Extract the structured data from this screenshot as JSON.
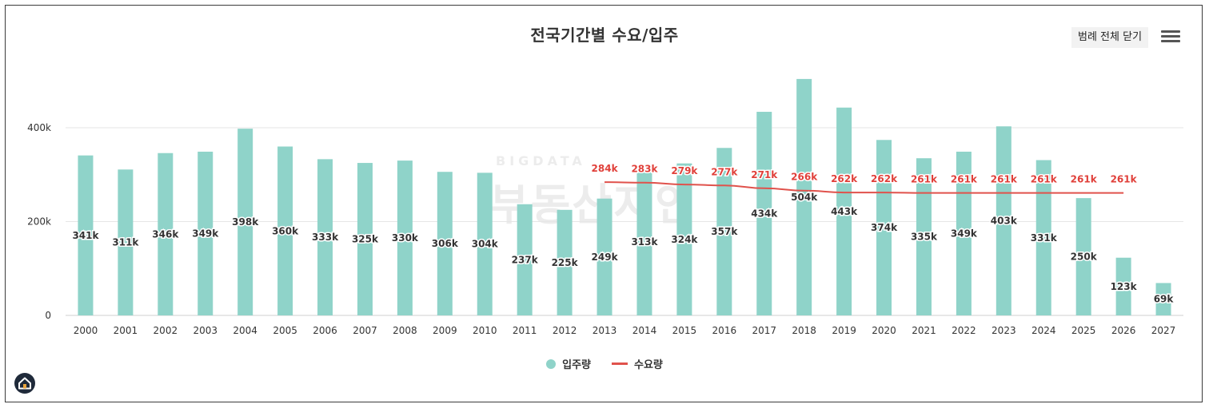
{
  "header": {
    "title": "전국기간별 수요/입주",
    "legend_toggle_label": "범례 전체 닫기"
  },
  "watermark": {
    "top_text": "BIGDATA",
    "main_text": "부동산지인"
  },
  "colors": {
    "bar": "#8fd3c9",
    "line": "#e0524c",
    "line_label": "#e0403a",
    "bar_label": "#333333",
    "grid": "#e6e6e6",
    "axis_text": "#333333"
  },
  "legend": {
    "items": [
      {
        "label": "입주량",
        "color": "#8fd3c9",
        "symbol": "dot"
      },
      {
        "label": "수요량",
        "color": "#e0524c",
        "symbol": "line"
      }
    ]
  },
  "chart_data": {
    "type": "bar",
    "title": "전국기간별 수요/입주",
    "xlabel": "",
    "ylabel": "",
    "ylim": [
      0,
      500000
    ],
    "yticks": [
      0,
      200000,
      400000
    ],
    "ytick_labels": [
      "0",
      "200k",
      "400k"
    ],
    "categories": [
      "2000",
      "2001",
      "2002",
      "2003",
      "2004",
      "2005",
      "2006",
      "2007",
      "2008",
      "2009",
      "2010",
      "2011",
      "2012",
      "2013",
      "2014",
      "2015",
      "2016",
      "2017",
      "2018",
      "2019",
      "2020",
      "2021",
      "2022",
      "2023",
      "2024",
      "2025",
      "2026",
      "2027"
    ],
    "series": [
      {
        "name": "입주량",
        "kind": "bar",
        "values": [
          341000,
          311000,
          346000,
          349000,
          398000,
          360000,
          333000,
          325000,
          330000,
          306000,
          304000,
          237000,
          225000,
          249000,
          313000,
          324000,
          357000,
          434000,
          504000,
          443000,
          374000,
          335000,
          349000,
          403000,
          331000,
          250000,
          123000,
          69000
        ],
        "labels": [
          "341k",
          "311k",
          "346k",
          "349k",
          "398k",
          "360k",
          "333k",
          "325k",
          "330k",
          "306k",
          "304k",
          "237k",
          "225k",
          "249k",
          "313k",
          "324k",
          "357k",
          "434k",
          "504k",
          "443k",
          "374k",
          "335k",
          "349k",
          "403k",
          "331k",
          "250k",
          "123k",
          "69k"
        ]
      },
      {
        "name": "수요량",
        "kind": "line",
        "values": [
          null,
          null,
          null,
          null,
          null,
          null,
          null,
          null,
          null,
          null,
          null,
          null,
          null,
          284000,
          283000,
          279000,
          277000,
          271000,
          266000,
          262000,
          262000,
          261000,
          261000,
          261000,
          261000,
          261000,
          261000,
          null
        ],
        "labels": [
          null,
          null,
          null,
          null,
          null,
          null,
          null,
          null,
          null,
          null,
          null,
          null,
          null,
          "284k",
          "283k",
          "279k",
          "277k",
          "271k",
          "266k",
          "262k",
          "262k",
          "261k",
          "261k",
          "261k",
          "261k",
          "261k",
          "261k",
          null
        ]
      }
    ],
    "grid": true,
    "legend_position": "bottom-center"
  }
}
